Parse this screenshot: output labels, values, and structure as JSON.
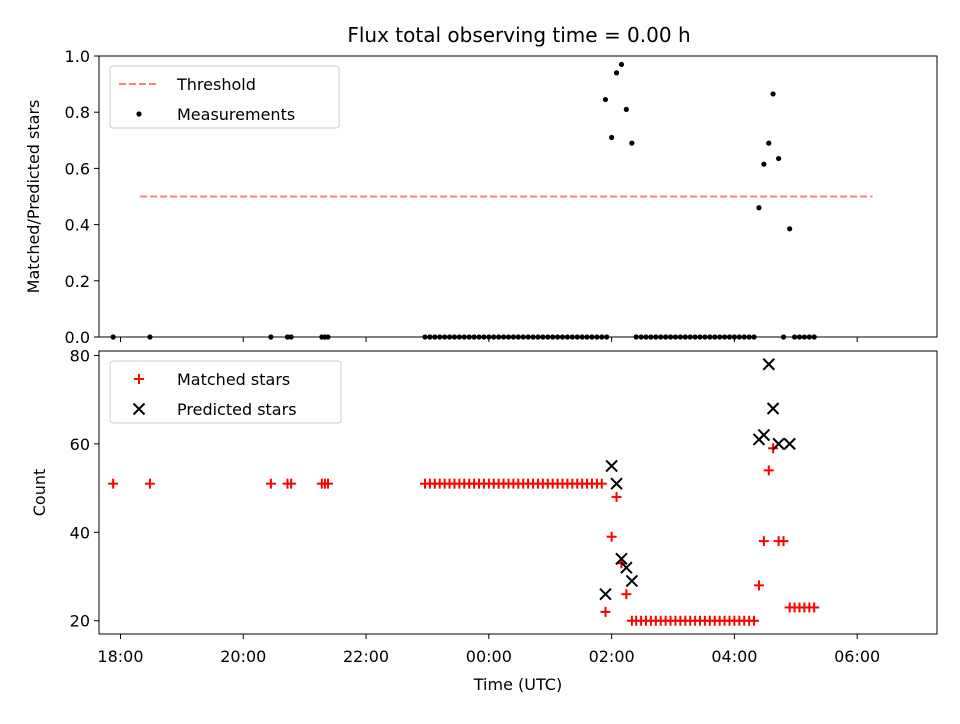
{
  "title": "Flux total observing time = 0.00 h",
  "chart_data": [
    {
      "type": "scatter",
      "ylabel": "Matched/Predicted stars",
      "xlim": [
        -0.35,
        13.3
      ],
      "ylim": [
        0,
        1.0
      ],
      "yticks": [
        "0.0",
        "0.2",
        "0.4",
        "0.6",
        "0.8",
        "1.0"
      ],
      "threshold": {
        "label": "Threshold",
        "y": 0.5,
        "x_from": 0.32,
        "x_to": 12.25,
        "color": "#ff8080"
      },
      "legend": {
        "position": "upper-left",
        "entries": [
          "Threshold",
          "Measurements"
        ]
      },
      "series": [
        {
          "name": "Measurements",
          "color": "#000000",
          "points": [
            [
              -0.12,
              0
            ],
            [
              0.48,
              0
            ],
            [
              2.45,
              0
            ],
            [
              2.72,
              0
            ],
            [
              2.78,
              0
            ],
            [
              3.28,
              0
            ],
            [
              3.33,
              0
            ],
            [
              3.38,
              0
            ],
            [
              4.96,
              0
            ],
            [
              5.04,
              0
            ],
            [
              5.12,
              0
            ],
            [
              5.2,
              0
            ],
            [
              5.28,
              0
            ],
            [
              5.36,
              0
            ],
            [
              5.44,
              0
            ],
            [
              5.52,
              0
            ],
            [
              5.6,
              0
            ],
            [
              5.68,
              0
            ],
            [
              5.76,
              0
            ],
            [
              5.84,
              0
            ],
            [
              5.92,
              0
            ],
            [
              6.0,
              0
            ],
            [
              6.08,
              0
            ],
            [
              6.16,
              0
            ],
            [
              6.24,
              0
            ],
            [
              6.32,
              0
            ],
            [
              6.4,
              0
            ],
            [
              6.48,
              0
            ],
            [
              6.56,
              0
            ],
            [
              6.64,
              0
            ],
            [
              6.72,
              0
            ],
            [
              6.8,
              0
            ],
            [
              6.88,
              0
            ],
            [
              6.96,
              0
            ],
            [
              7.04,
              0
            ],
            [
              7.12,
              0
            ],
            [
              7.2,
              0
            ],
            [
              7.28,
              0
            ],
            [
              7.36,
              0
            ],
            [
              7.44,
              0
            ],
            [
              7.52,
              0
            ],
            [
              7.6,
              0
            ],
            [
              7.68,
              0
            ],
            [
              7.76,
              0
            ],
            [
              7.84,
              0
            ],
            [
              7.92,
              0
            ],
            [
              7.9,
              0.845
            ],
            [
              8.0,
              0.71
            ],
            [
              8.08,
              0.94
            ],
            [
              8.16,
              0.97
            ],
            [
              8.24,
              0.81
            ],
            [
              8.33,
              0.69
            ],
            [
              8.4,
              0
            ],
            [
              8.48,
              0
            ],
            [
              8.56,
              0
            ],
            [
              8.64,
              0
            ],
            [
              8.72,
              0
            ],
            [
              8.8,
              0
            ],
            [
              8.88,
              0
            ],
            [
              8.96,
              0
            ],
            [
              9.04,
              0
            ],
            [
              9.12,
              0
            ],
            [
              9.2,
              0
            ],
            [
              9.28,
              0
            ],
            [
              9.36,
              0
            ],
            [
              9.44,
              0
            ],
            [
              9.52,
              0
            ],
            [
              9.6,
              0
            ],
            [
              9.68,
              0
            ],
            [
              9.76,
              0
            ],
            [
              9.84,
              0
            ],
            [
              9.92,
              0
            ],
            [
              10.0,
              0
            ],
            [
              10.08,
              0
            ],
            [
              10.16,
              0
            ],
            [
              10.24,
              0
            ],
            [
              10.32,
              0
            ],
            [
              10.4,
              0.46
            ],
            [
              10.48,
              0.615
            ],
            [
              10.56,
              0.69
            ],
            [
              10.63,
              0.865
            ],
            [
              10.72,
              0.635
            ],
            [
              10.8,
              0
            ],
            [
              10.9,
              0.385
            ],
            [
              10.98,
              0
            ],
            [
              11.06,
              0
            ],
            [
              11.14,
              0
            ],
            [
              11.22,
              0
            ],
            [
              11.3,
              0
            ]
          ]
        }
      ]
    },
    {
      "type": "scatter",
      "xlabel": "Time (UTC)",
      "ylabel": "Count",
      "xlim": [
        -0.35,
        13.3
      ],
      "ylim": [
        17,
        81
      ],
      "yticks": [
        "20",
        "40",
        "60",
        "80"
      ],
      "xticks": [
        "18:00",
        "20:00",
        "22:00",
        "00:00",
        "02:00",
        "04:00",
        "06:00"
      ],
      "legend": {
        "position": "upper-left",
        "entries": [
          "Matched stars",
          "Predicted stars"
        ]
      },
      "series": [
        {
          "name": "Matched stars",
          "color": "#ff0000",
          "marker": "plus",
          "points": [
            [
              -0.12,
              51
            ],
            [
              0.48,
              51
            ],
            [
              2.45,
              51
            ],
            [
              2.72,
              51
            ],
            [
              2.78,
              51
            ],
            [
              3.28,
              51
            ],
            [
              3.33,
              51
            ],
            [
              3.38,
              51
            ],
            [
              4.96,
              51
            ],
            [
              5.04,
              51
            ],
            [
              5.12,
              51
            ],
            [
              5.2,
              51
            ],
            [
              5.28,
              51
            ],
            [
              5.36,
              51
            ],
            [
              5.44,
              51
            ],
            [
              5.52,
              51
            ],
            [
              5.6,
              51
            ],
            [
              5.68,
              51
            ],
            [
              5.76,
              51
            ],
            [
              5.84,
              51
            ],
            [
              5.92,
              51
            ],
            [
              6.0,
              51
            ],
            [
              6.08,
              51
            ],
            [
              6.16,
              51
            ],
            [
              6.24,
              51
            ],
            [
              6.32,
              51
            ],
            [
              6.4,
              51
            ],
            [
              6.48,
              51
            ],
            [
              6.56,
              51
            ],
            [
              6.64,
              51
            ],
            [
              6.72,
              51
            ],
            [
              6.8,
              51
            ],
            [
              6.88,
              51
            ],
            [
              6.96,
              51
            ],
            [
              7.04,
              51
            ],
            [
              7.12,
              51
            ],
            [
              7.2,
              51
            ],
            [
              7.28,
              51
            ],
            [
              7.36,
              51
            ],
            [
              7.44,
              51
            ],
            [
              7.52,
              51
            ],
            [
              7.6,
              51
            ],
            [
              7.68,
              51
            ],
            [
              7.76,
              51
            ],
            [
              7.84,
              51
            ],
            [
              7.9,
              22
            ],
            [
              8.0,
              39
            ],
            [
              8.08,
              48
            ],
            [
              8.16,
              33
            ],
            [
              8.24,
              26
            ],
            [
              8.33,
              20
            ],
            [
              8.4,
              20
            ],
            [
              8.48,
              20
            ],
            [
              8.56,
              20
            ],
            [
              8.64,
              20
            ],
            [
              8.72,
              20
            ],
            [
              8.8,
              20
            ],
            [
              8.88,
              20
            ],
            [
              8.96,
              20
            ],
            [
              9.04,
              20
            ],
            [
              9.12,
              20
            ],
            [
              9.2,
              20
            ],
            [
              9.28,
              20
            ],
            [
              9.36,
              20
            ],
            [
              9.44,
              20
            ],
            [
              9.52,
              20
            ],
            [
              9.6,
              20
            ],
            [
              9.68,
              20
            ],
            [
              9.76,
              20
            ],
            [
              9.84,
              20
            ],
            [
              9.92,
              20
            ],
            [
              10.0,
              20
            ],
            [
              10.08,
              20
            ],
            [
              10.16,
              20
            ],
            [
              10.24,
              20
            ],
            [
              10.32,
              20
            ],
            [
              10.4,
              28
            ],
            [
              10.48,
              38
            ],
            [
              10.56,
              54
            ],
            [
              10.63,
              59
            ],
            [
              10.72,
              38
            ],
            [
              10.8,
              38
            ],
            [
              10.9,
              23
            ],
            [
              10.98,
              23
            ],
            [
              11.06,
              23
            ],
            [
              11.14,
              23
            ],
            [
              11.22,
              23
            ],
            [
              11.3,
              23
            ]
          ]
        },
        {
          "name": "Predicted stars",
          "color": "#000000",
          "marker": "x",
          "points": [
            [
              7.9,
              26
            ],
            [
              8.0,
              55
            ],
            [
              8.08,
              51
            ],
            [
              8.16,
              34
            ],
            [
              8.24,
              32
            ],
            [
              8.33,
              29
            ],
            [
              10.4,
              61
            ],
            [
              10.48,
              62
            ],
            [
              10.56,
              78
            ],
            [
              10.63,
              68
            ],
            [
              10.72,
              60
            ],
            [
              10.9,
              60
            ]
          ]
        }
      ]
    }
  ]
}
